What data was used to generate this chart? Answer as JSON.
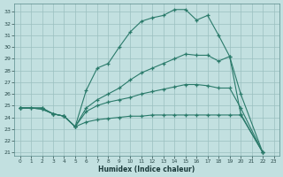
{
  "xlabel": "Humidex (Indice chaleur)",
  "bg_color": "#c2e0e0",
  "line_color": "#2a7a6a",
  "grid_color": "#9bbfbf",
  "xlim": [
    -0.5,
    23.5
  ],
  "ylim": [
    20.7,
    33.7
  ],
  "yticks": [
    21,
    22,
    23,
    24,
    25,
    26,
    27,
    28,
    29,
    30,
    31,
    32,
    33
  ],
  "xticks": [
    0,
    1,
    2,
    3,
    4,
    5,
    6,
    7,
    8,
    9,
    10,
    11,
    12,
    13,
    14,
    15,
    16,
    17,
    18,
    19,
    20,
    21,
    22,
    23
  ],
  "curve1_x": [
    0,
    1,
    2,
    3,
    4,
    5,
    6,
    7,
    8,
    9,
    10,
    11,
    12,
    13,
    14,
    15,
    16,
    17,
    18,
    19,
    20,
    22
  ],
  "curve1_y": [
    24.8,
    24.8,
    24.7,
    24.3,
    24.1,
    23.2,
    26.3,
    28.2,
    28.6,
    30.0,
    31.3,
    32.2,
    32.5,
    32.7,
    33.2,
    33.2,
    32.3,
    32.7,
    31.0,
    29.2,
    24.3,
    21.0
  ],
  "curve2_x": [
    0,
    2,
    3,
    4,
    5,
    6,
    7,
    8,
    9,
    10,
    11,
    12,
    13,
    14,
    15,
    16,
    17,
    18,
    19,
    20,
    22
  ],
  "curve2_y": [
    24.8,
    24.8,
    24.3,
    24.1,
    23.2,
    24.8,
    25.5,
    26.0,
    26.5,
    27.2,
    27.8,
    28.2,
    28.6,
    29.0,
    29.4,
    29.3,
    29.3,
    28.8,
    29.2,
    26.0,
    21.0
  ],
  "curve3_x": [
    0,
    2,
    3,
    4,
    5,
    6,
    7,
    8,
    9,
    10,
    11,
    12,
    13,
    14,
    15,
    16,
    17,
    18,
    19,
    20,
    22
  ],
  "curve3_y": [
    24.8,
    24.8,
    24.3,
    24.1,
    23.2,
    24.5,
    25.0,
    25.3,
    25.5,
    25.7,
    26.0,
    26.2,
    26.4,
    26.6,
    26.8,
    26.8,
    26.7,
    26.5,
    26.5,
    24.8,
    21.0
  ],
  "curve4_x": [
    0,
    1,
    2,
    3,
    4,
    5,
    6,
    7,
    8,
    9,
    10,
    11,
    12,
    13,
    14,
    15,
    16,
    17,
    18,
    19,
    20,
    22
  ],
  "curve4_y": [
    24.8,
    24.8,
    24.7,
    24.3,
    24.1,
    23.2,
    23.6,
    23.8,
    23.9,
    24.0,
    24.1,
    24.1,
    24.2,
    24.2,
    24.2,
    24.2,
    24.2,
    24.2,
    24.2,
    24.2,
    24.2,
    21.0
  ]
}
